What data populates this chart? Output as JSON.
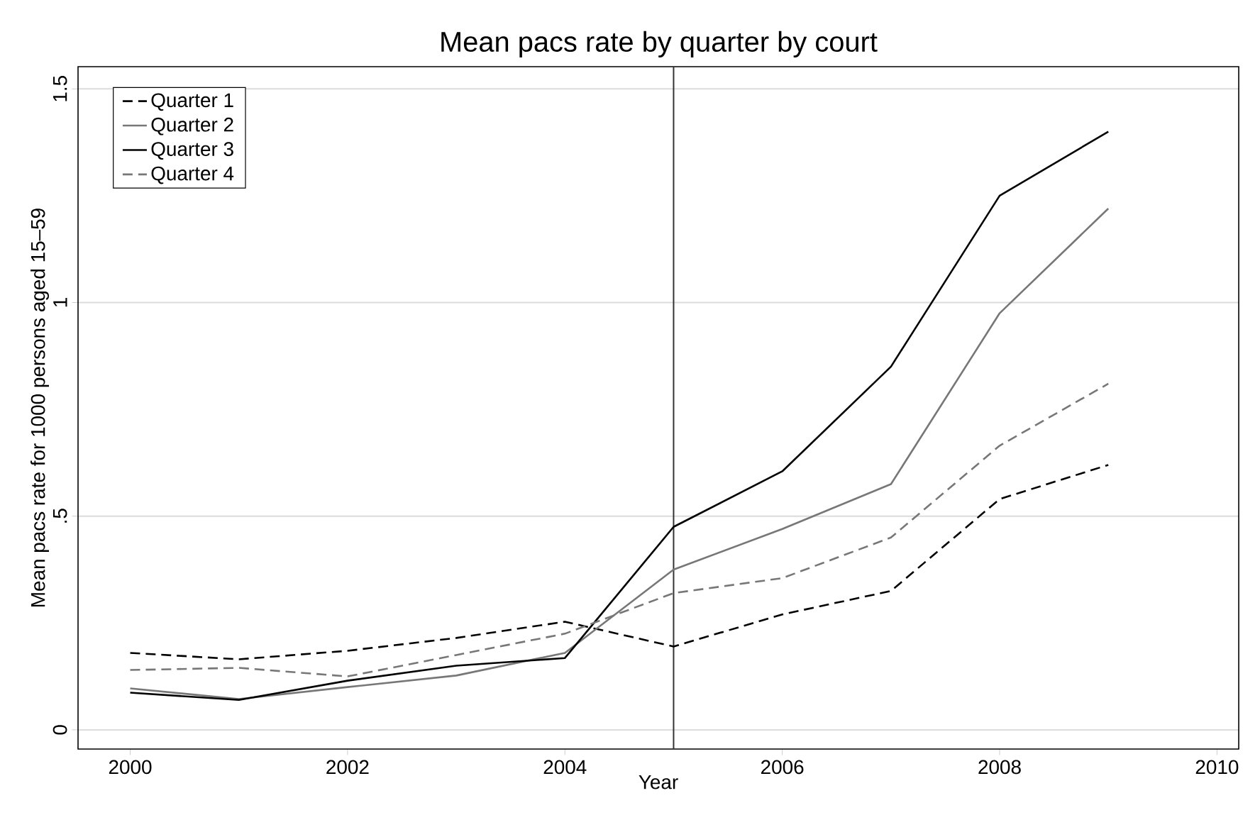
{
  "chart_data": {
    "type": "line",
    "title": "Mean pacs rate by quarter by court",
    "xlabel": "Year",
    "ylabel": "Mean pacs rate for 1000 persons aged 15–59",
    "x": [
      2000,
      2001,
      2002,
      2003,
      2004,
      2005,
      2006,
      2007,
      2008,
      2009
    ],
    "series": [
      {
        "name": "Quarter 1",
        "color": "#000000",
        "line_style": "dashed",
        "values": [
          0.18,
          0.165,
          0.185,
          0.215,
          0.253,
          0.195,
          0.27,
          0.325,
          0.54,
          0.62
        ]
      },
      {
        "name": "Quarter 2",
        "color": "#777777",
        "line_style": "solid",
        "values": [
          0.097,
          0.072,
          0.1,
          0.127,
          0.18,
          0.375,
          0.47,
          0.575,
          0.975,
          1.22
        ]
      },
      {
        "name": "Quarter 3",
        "color": "#000000",
        "line_style": "solid",
        "values": [
          0.087,
          0.07,
          0.115,
          0.15,
          0.168,
          0.475,
          0.605,
          0.85,
          1.25,
          1.4
        ]
      },
      {
        "name": "Quarter 4",
        "color": "#777777",
        "line_style": "dashed",
        "values": [
          0.14,
          0.145,
          0.125,
          0.175,
          0.225,
          0.32,
          0.355,
          0.45,
          0.665,
          0.81
        ]
      }
    ],
    "xlim": [
      1999.52,
      2010.2
    ],
    "ylim": [
      -0.045,
      1.552
    ],
    "xticks": [
      2000,
      2002,
      2004,
      2006,
      2008,
      2010
    ],
    "yticks": [
      0,
      {
        "value": 0.5,
        "label": ".5"
      },
      1,
      1.5
    ],
    "ref_lines": [
      {
        "axis": "x",
        "value": 2005,
        "color": "#333333"
      }
    ],
    "grid": "y",
    "legend": "top left",
    "marker": "none"
  }
}
